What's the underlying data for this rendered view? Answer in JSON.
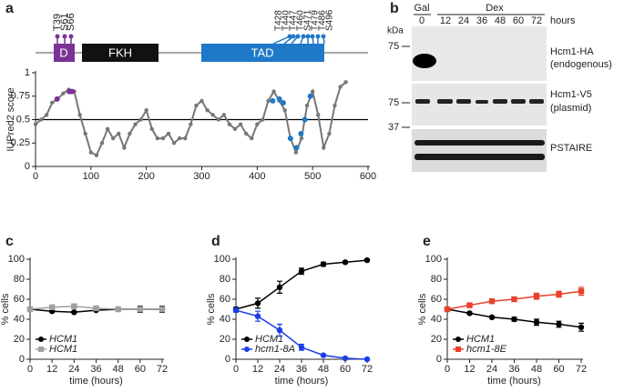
{
  "chart_data": [
    {
      "type": "line",
      "panel": "a",
      "ylabel": "IUPred2 score",
      "xlim": [
        0,
        600
      ],
      "xticks": [
        0,
        100,
        200,
        300,
        400,
        500,
        600
      ],
      "ylim": [
        0,
        1
      ],
      "yticks": [
        0,
        0.25,
        0.5,
        0.75,
        1
      ],
      "reference_line": 0.5,
      "series": [
        {
          "color": "#777777",
          "marker": "circle",
          "x": [
            0,
            10,
            20,
            30,
            40,
            50,
            60,
            70,
            80,
            90,
            100,
            110,
            120,
            130,
            140,
            150,
            160,
            170,
            180,
            190,
            200,
            210,
            220,
            230,
            240,
            250,
            260,
            270,
            280,
            290,
            300,
            310,
            320,
            330,
            340,
            350,
            360,
            370,
            380,
            390,
            400,
            410,
            420,
            430,
            440,
            450,
            460,
            470,
            480,
            490,
            500,
            510,
            520,
            530,
            540,
            550,
            560
          ],
          "values": [
            0.45,
            0.5,
            0.55,
            0.68,
            0.72,
            0.78,
            0.82,
            0.8,
            0.55,
            0.35,
            0.15,
            0.12,
            0.25,
            0.4,
            0.3,
            0.35,
            0.2,
            0.35,
            0.45,
            0.5,
            0.6,
            0.4,
            0.3,
            0.3,
            0.35,
            0.25,
            0.3,
            0.3,
            0.45,
            0.65,
            0.7,
            0.6,
            0.55,
            0.5,
            0.55,
            0.45,
            0.4,
            0.45,
            0.35,
            0.3,
            0.45,
            0.5,
            0.7,
            0.8,
            0.7,
            0.6,
            0.3,
            0.15,
            0.3,
            0.65,
            0.8,
            0.55,
            0.2,
            0.35,
            0.65,
            0.85,
            0.9
          ]
        },
        {
          "color": "#7b3294",
          "marker": "circle",
          "x": [
            39,
            61,
            66
          ],
          "values": [
            0.72,
            0.8,
            0.8
          ]
        },
        {
          "color": "#1f78c8",
          "marker": "circle",
          "x": [
            428,
            440,
            447,
            460,
            471,
            479,
            486,
            496
          ],
          "values": [
            0.7,
            0.72,
            0.68,
            0.3,
            0.2,
            0.35,
            0.5,
            0.75
          ]
        }
      ]
    },
    {
      "type": "line",
      "panel": "c",
      "ylabel": "% cells",
      "xlabel": "time (hours)",
      "legend": "lower left",
      "xlim": [
        0,
        72
      ],
      "xticks": [
        0,
        12,
        24,
        36,
        48,
        60,
        72
      ],
      "ylim": [
        0,
        100
      ],
      "yticks": [
        0,
        20,
        40,
        60,
        80,
        100
      ],
      "x": [
        0,
        12,
        24,
        36,
        48,
        60,
        72
      ],
      "series": [
        {
          "name": "HCM1",
          "color": "#000000",
          "marker": "circle",
          "values": [
            50,
            48,
            47,
            49,
            50,
            50,
            50
          ],
          "errors": [
            1,
            1,
            1,
            1,
            1,
            3,
            3
          ]
        },
        {
          "name": "HCM1",
          "color": "#a0a0a0",
          "marker": "square",
          "values": [
            50,
            52,
            53,
            51,
            50,
            50,
            50
          ],
          "errors": [
            1,
            1,
            1,
            1,
            1,
            2,
            2
          ]
        }
      ]
    },
    {
      "type": "line",
      "panel": "d",
      "ylabel": "% cells",
      "xlabel": "time (hours)",
      "legend": "lower left",
      "xlim": [
        0,
        72
      ],
      "xticks": [
        0,
        12,
        24,
        36,
        48,
        60,
        72
      ],
      "ylim": [
        0,
        100
      ],
      "yticks": [
        0,
        20,
        40,
        60,
        80,
        100
      ],
      "x": [
        0,
        12,
        24,
        36,
        48,
        60,
        72
      ],
      "series": [
        {
          "name": "HCM1",
          "color": "#000000",
          "marker": "circle",
          "values": [
            50,
            56,
            72,
            88,
            95,
            97,
            99
          ],
          "errors": [
            2,
            5,
            6,
            3,
            2,
            1,
            1
          ]
        },
        {
          "name": "hcm1-8A",
          "color": "#1a3ee8",
          "marker": "circle",
          "values": [
            49,
            43,
            29,
            12,
            4,
            1,
            0
          ],
          "errors": [
            2,
            5,
            6,
            3,
            1,
            1,
            1
          ]
        }
      ]
    },
    {
      "type": "line",
      "panel": "e",
      "ylabel": "% cells",
      "xlabel": "time (hours)",
      "legend": "lower left",
      "xlim": [
        0,
        72
      ],
      "xticks": [
        0,
        12,
        24,
        36,
        48,
        60,
        72
      ],
      "ylim": [
        0,
        100
      ],
      "yticks": [
        0,
        20,
        40,
        60,
        80,
        100
      ],
      "x": [
        0,
        12,
        24,
        36,
        48,
        60,
        72
      ],
      "series": [
        {
          "name": "HCM1",
          "color": "#000000",
          "marker": "circle",
          "values": [
            50,
            46,
            42,
            40,
            37,
            35,
            32
          ],
          "errors": [
            1,
            1,
            1,
            2,
            3,
            3,
            4
          ]
        },
        {
          "name": "hcm1-8E",
          "color": "#e8412c",
          "marker": "square",
          "values": [
            50,
            54,
            58,
            60,
            63,
            65,
            68
          ],
          "errors": [
            1,
            1,
            2,
            2,
            3,
            3,
            4
          ]
        }
      ]
    }
  ],
  "domain_diagram": {
    "domains": [
      "D",
      "FKH",
      "TAD"
    ],
    "sites_d": [
      "T39",
      "S61",
      "S66"
    ],
    "sites_tad": [
      "T428",
      "T440",
      "T447",
      "T460",
      "S471",
      "T479",
      "T486",
      "S496"
    ]
  },
  "blot": {
    "panel": "b",
    "gal": "Gal",
    "dex": "Dex",
    "lanes": [
      0,
      12,
      24,
      36,
      48,
      60,
      72
    ],
    "hours": "hours",
    "kda": "kDa",
    "markers": [
      75,
      75,
      37
    ],
    "labels": [
      "Hcm1-HA",
      "(endogenous)",
      "Hcm1-V5",
      "(plasmid)",
      "PSTAIRE"
    ]
  }
}
